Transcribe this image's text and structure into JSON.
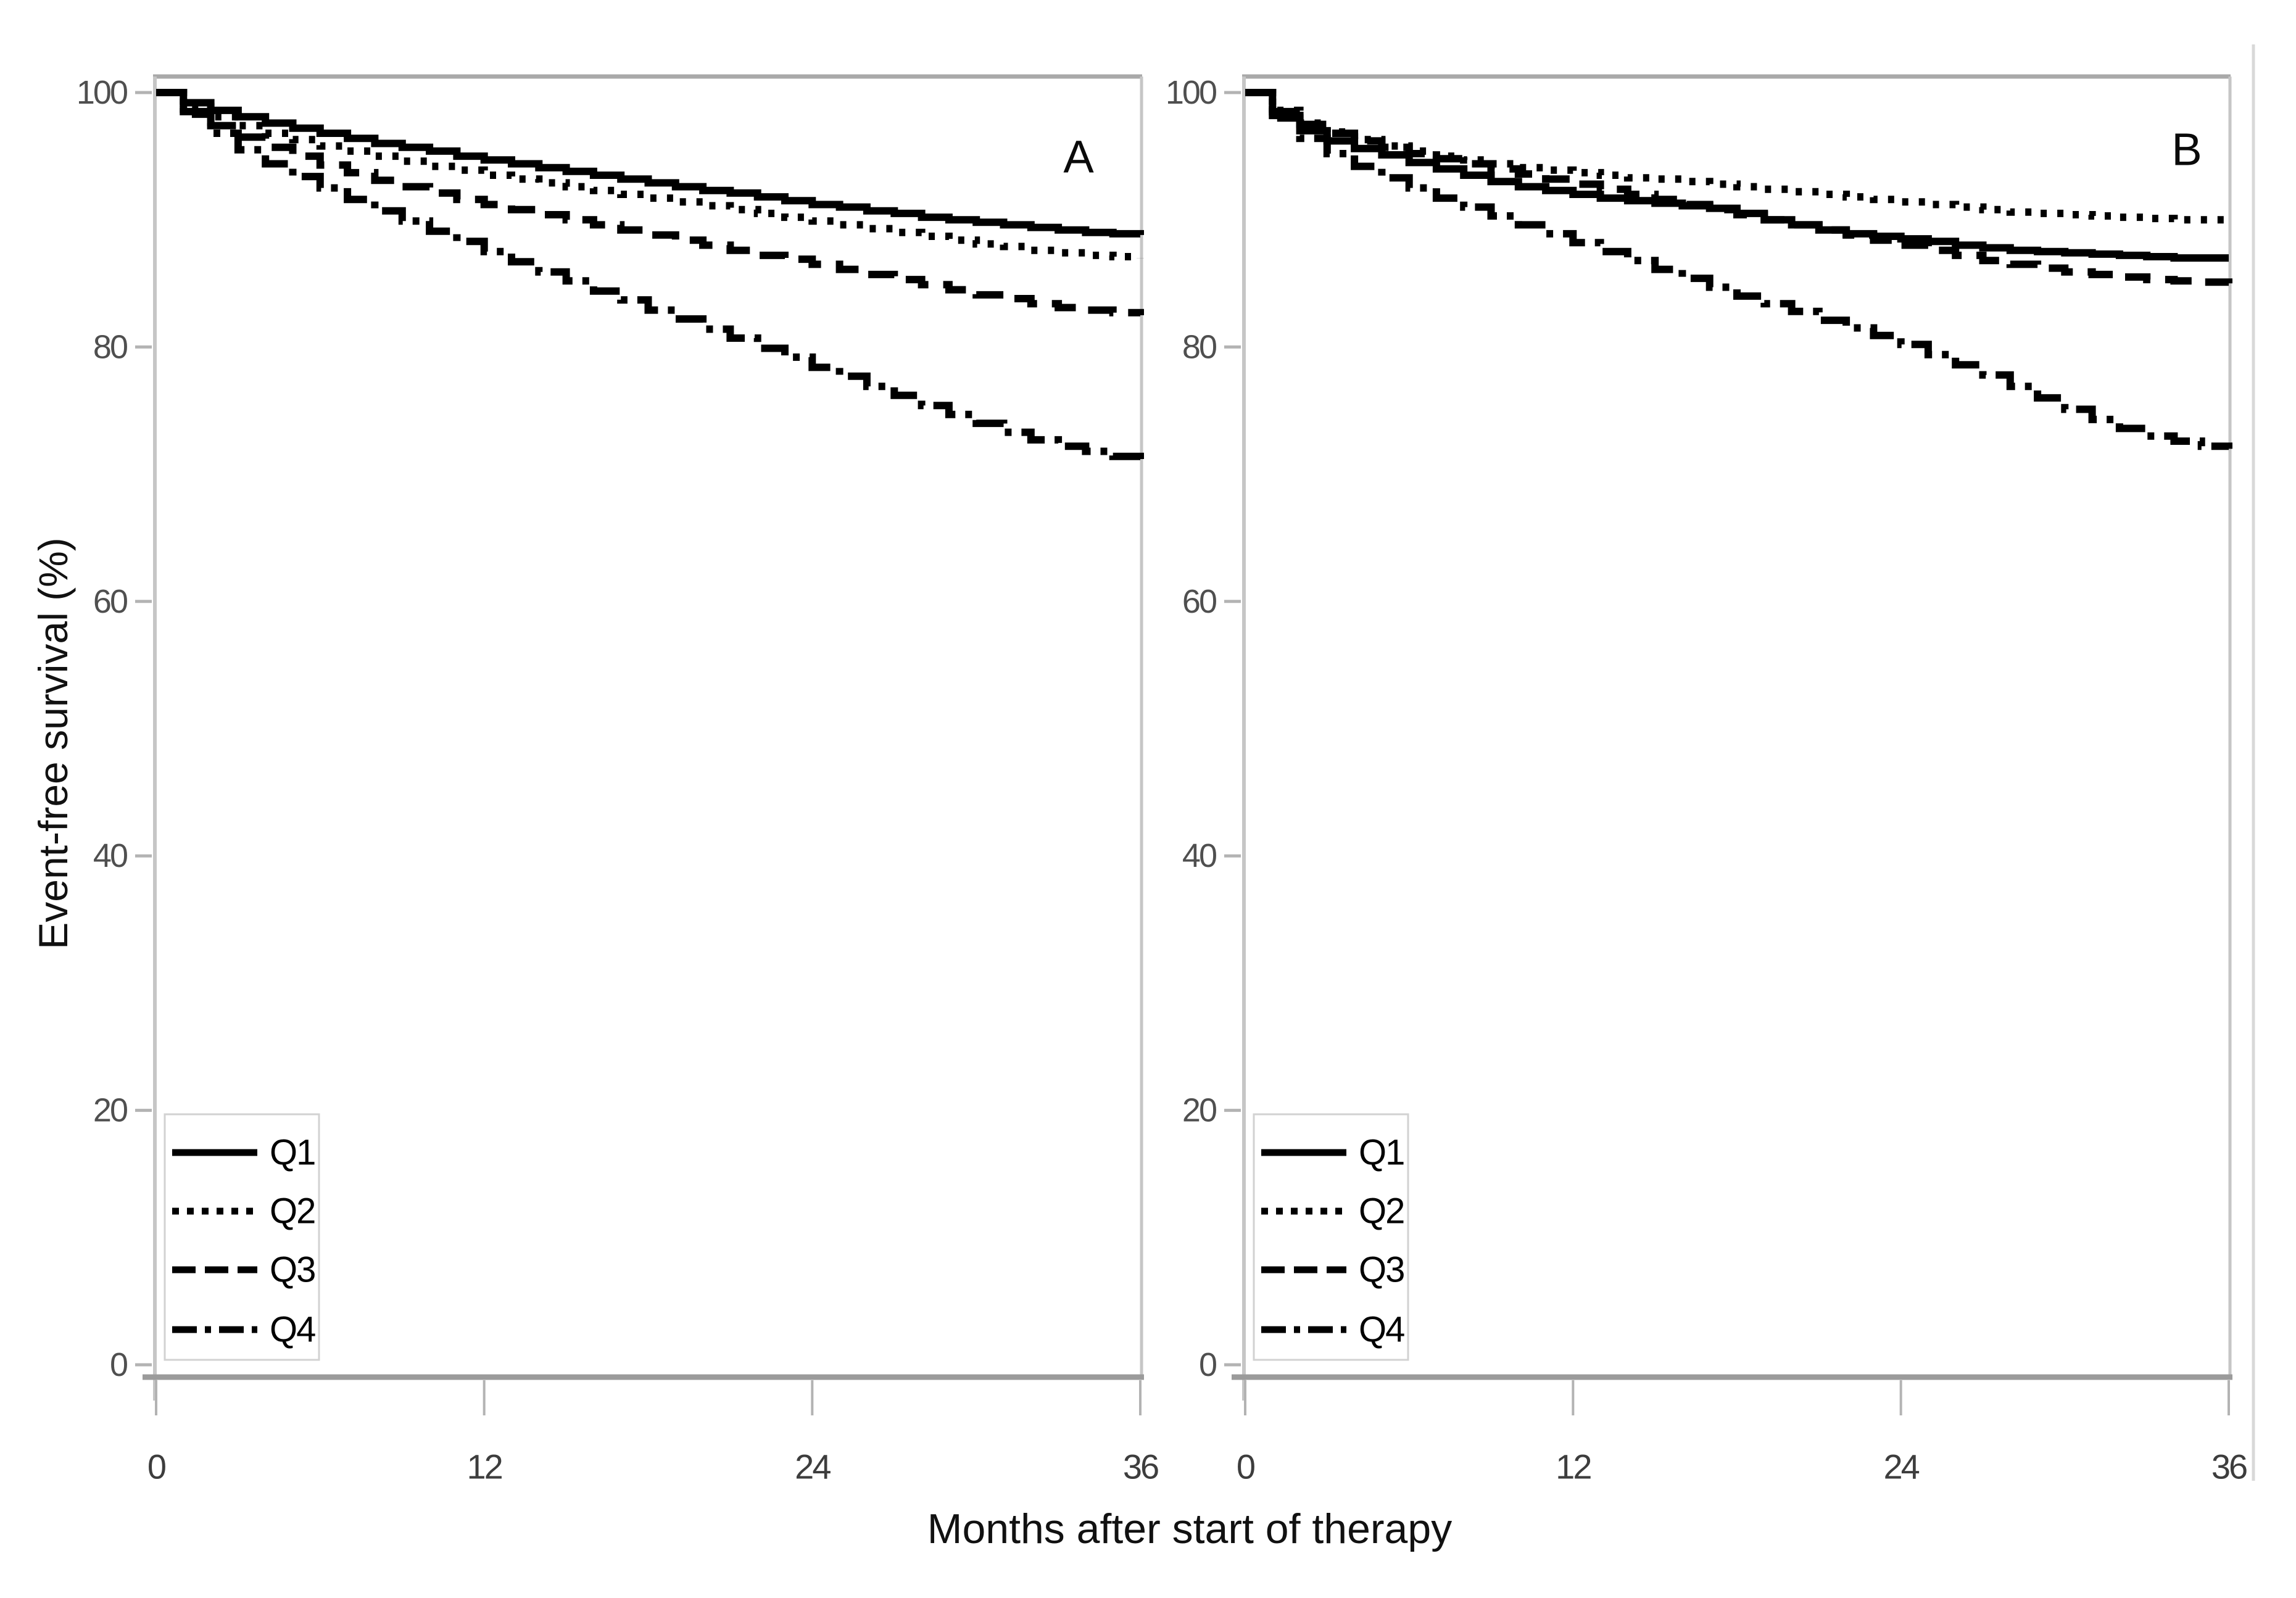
{
  "figure": {
    "y_axis_title": "Event-free survival (%)",
    "x_axis_title": "Months after start of therapy",
    "background_color": "#ffffff",
    "curve_color": "#000000",
    "frame_line_color": "#a9a9a9",
    "axis_line_color": "#c6c6c6",
    "tick_mark_color": "#b3b3b3",
    "legend_border_color": "#d2d2d2"
  },
  "chart_data": [
    {
      "type": "line",
      "subtype": "kaplan-meier-step",
      "panel_label": "A",
      "xlabel": "Months after start of therapy",
      "ylabel": "Event-free survival (%)",
      "xlim": [
        0,
        36
      ],
      "ylim": [
        0,
        100
      ],
      "x_ticks": [
        0,
        12,
        24,
        36
      ],
      "y_ticks": [
        0,
        20,
        40,
        60,
        80,
        100
      ],
      "grid": "off",
      "legend_position": "lower-left",
      "x_months": [
        0,
        1,
        2,
        3,
        4,
        5,
        6,
        7,
        8,
        9,
        10,
        11,
        12,
        13,
        14,
        15,
        16,
        17,
        18,
        19,
        20,
        21,
        22,
        23,
        24,
        25,
        26,
        27,
        28,
        29,
        30,
        31,
        32,
        33,
        34,
        35,
        36
      ],
      "series": [
        {
          "name": "Q1",
          "line_style": "solid",
          "values": [
            100,
            99.2,
            98.6,
            98.1,
            97.6,
            97.2,
            96.8,
            96.4,
            96.0,
            95.7,
            95.4,
            95.0,
            94.7,
            94.4,
            94.1,
            93.8,
            93.5,
            93.2,
            92.9,
            92.6,
            92.3,
            92.1,
            91.8,
            91.5,
            91.2,
            91.0,
            90.7,
            90.5,
            90.2,
            90.0,
            89.8,
            89.6,
            89.4,
            89.2,
            89.0,
            88.9,
            88.8
          ]
        },
        {
          "name": "Q2",
          "line_style": "dotted",
          "values": [
            100,
            98.9,
            98.1,
            97.4,
            96.8,
            96.3,
            95.8,
            95.4,
            95.0,
            94.6,
            94.2,
            93.9,
            93.5,
            93.2,
            92.9,
            92.6,
            92.3,
            92.0,
            91.7,
            91.4,
            91.1,
            90.8,
            90.5,
            90.2,
            89.9,
            89.6,
            89.3,
            89.0,
            88.7,
            88.4,
            88.1,
            87.9,
            87.6,
            87.4,
            87.2,
            87.1,
            87.0
          ]
        },
        {
          "name": "Q3",
          "line_style": "dashed",
          "values": [
            100,
            98.5,
            97.4,
            96.5,
            95.7,
            95.0,
            94.3,
            93.7,
            93.1,
            92.6,
            92.1,
            91.6,
            91.2,
            90.8,
            90.4,
            90.0,
            89.6,
            89.2,
            88.8,
            88.4,
            88.0,
            87.6,
            87.2,
            86.9,
            86.5,
            86.1,
            85.7,
            85.3,
            84.9,
            84.5,
            84.1,
            83.8,
            83.4,
            83.1,
            82.9,
            82.7,
            82.5
          ]
        },
        {
          "name": "Q4",
          "line_style": "dashdot",
          "values": [
            100,
            98.3,
            96.8,
            95.5,
            94.4,
            93.4,
            92.5,
            91.6,
            90.7,
            89.9,
            89.1,
            88.3,
            87.5,
            86.7,
            85.9,
            85.2,
            84.4,
            83.7,
            82.9,
            82.2,
            81.4,
            80.7,
            79.9,
            79.2,
            78.4,
            77.7,
            76.9,
            76.2,
            75.4,
            74.7,
            74.0,
            73.3,
            72.7,
            72.2,
            71.8,
            71.4,
            71.0
          ]
        }
      ]
    },
    {
      "type": "line",
      "subtype": "kaplan-meier-step",
      "panel_label": "B",
      "xlabel": "Months after start of therapy",
      "ylabel": "Event-free survival (%)",
      "xlim": [
        0,
        36
      ],
      "ylim": [
        0,
        100
      ],
      "x_ticks": [
        0,
        12,
        24,
        36
      ],
      "y_ticks": [
        0,
        20,
        40,
        60,
        80,
        100
      ],
      "grid": "off",
      "legend_position": "lower-left",
      "x_months": [
        0,
        1,
        2,
        3,
        4,
        5,
        6,
        7,
        8,
        9,
        10,
        11,
        12,
        13,
        14,
        15,
        16,
        17,
        18,
        19,
        20,
        21,
        22,
        23,
        24,
        25,
        26,
        27,
        28,
        29,
        30,
        31,
        32,
        33,
        34,
        35,
        36
      ],
      "series": [
        {
          "name": "Q1",
          "line_style": "solid",
          "values": [
            100,
            98.2,
            97.0,
            96.2,
            95.6,
            95.1,
            94.5,
            94.0,
            93.5,
            93.0,
            92.6,
            92.3,
            92.0,
            91.7,
            91.5,
            91.3,
            91.1,
            90.9,
            90.5,
            90.0,
            89.6,
            89.2,
            88.9,
            88.7,
            88.5,
            88.3,
            88.0,
            87.8,
            87.6,
            87.5,
            87.4,
            87.3,
            87.2,
            87.1,
            87.0,
            87.0,
            87.0
          ]
        },
        {
          "name": "Q2",
          "line_style": "dotted",
          "values": [
            100,
            98.6,
            97.6,
            96.9,
            96.3,
            95.8,
            95.4,
            95.0,
            94.7,
            94.4,
            94.1,
            93.9,
            93.7,
            93.5,
            93.3,
            93.2,
            93.0,
            92.8,
            92.6,
            92.4,
            92.2,
            92.0,
            91.8,
            91.6,
            91.4,
            91.2,
            91.0,
            90.8,
            90.6,
            90.5,
            90.4,
            90.3,
            90.2,
            90.1,
            90.0,
            90.0,
            90.0
          ]
        },
        {
          "name": "Q3",
          "line_style": "dashed",
          "values": [
            100,
            98.5,
            97.5,
            96.8,
            96.2,
            95.7,
            95.2,
            94.8,
            94.4,
            94.0,
            93.6,
            93.2,
            92.8,
            92.4,
            92.0,
            91.6,
            91.2,
            90.8,
            90.4,
            90.0,
            89.6,
            89.2,
            88.8,
            88.4,
            88.0,
            87.6,
            87.2,
            86.8,
            86.5,
            86.2,
            85.9,
            85.7,
            85.5,
            85.3,
            85.2,
            85.1,
            85.0
          ]
        },
        {
          "name": "Q4",
          "line_style": "dashdot",
          "values": [
            100,
            98.0,
            96.4,
            95.2,
            94.2,
            93.3,
            92.5,
            91.7,
            91.0,
            90.3,
            89.6,
            88.9,
            88.2,
            87.5,
            86.8,
            86.1,
            85.4,
            84.7,
            84.0,
            83.4,
            82.8,
            82.1,
            81.5,
            80.9,
            80.2,
            79.4,
            78.6,
            77.8,
            76.9,
            76.0,
            75.1,
            74.3,
            73.6,
            73.0,
            72.6,
            72.2,
            72.0
          ]
        }
      ]
    }
  ]
}
